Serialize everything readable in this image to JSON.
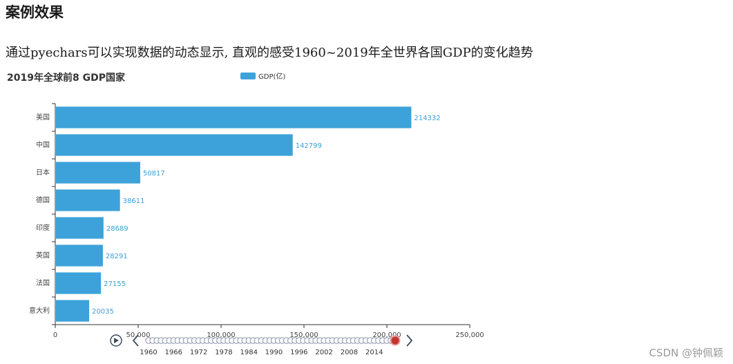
{
  "page": {
    "heading": "案例效果",
    "intro": "通过pyechars可以实现数据的动态显示, 直观的感受1960~2019年全世界各国GDP的变化趋势",
    "watermark": "CSDN @钟佩颖"
  },
  "colors": {
    "bar": "#3da2d9",
    "axis": "#333333",
    "timeline_dot": "#c8ccd6",
    "timeline_active": "#c23531"
  },
  "chart_data": {
    "type": "bar",
    "orientation": "horizontal",
    "title": "2019年全球前8 GDP国家",
    "legend": {
      "label": "GDP(亿)",
      "placement": "top-center"
    },
    "categories": [
      "美国",
      "中国",
      "日本",
      "德国",
      "印度",
      "英国",
      "法国",
      "意大利"
    ],
    "series": [
      {
        "name": "GDP(亿)",
        "values": [
          214332,
          142799,
          50817,
          38611,
          28689,
          28291,
          27155,
          20035
        ]
      }
    ],
    "x_axis": {
      "min": 0,
      "max": 250000,
      "ticks": [
        0,
        50000,
        100000,
        150000,
        200000,
        250000
      ],
      "tick_labels": [
        "0",
        "50,000",
        "100,000",
        "150,000",
        "200,000",
        "250,000"
      ]
    },
    "grid": false
  },
  "timeline": {
    "years_start": 1960,
    "years_end": 2019,
    "active_year": 2019,
    "labels": [
      "1960",
      "1966",
      "1972",
      "1978",
      "1984",
      "1990",
      "1996",
      "2002",
      "2008",
      "2014"
    ],
    "icons": {
      "play": "play-icon",
      "prev": "chevron-left-icon",
      "next": "chevron-right-icon"
    }
  }
}
